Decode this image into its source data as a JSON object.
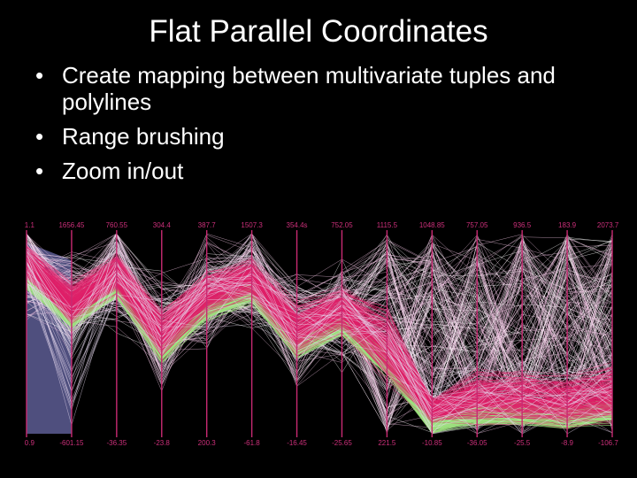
{
  "slide": {
    "title": "Flat Parallel Coordinates",
    "bullets": [
      "Create mapping between multivariate tuples and  polylines",
      "Range brushing",
      "Zoom in/out"
    ]
  },
  "chart_data": {
    "type": "parallel-coordinates",
    "axes_count": 14,
    "top_labels": [
      "1.1",
      "1656.45",
      "760.55",
      "304.4",
      "387.7",
      "1507.3",
      "354.4s",
      "752.05",
      "1115.5",
      "1048.85",
      "757.05",
      "936.5",
      "183.9",
      "2073.7"
    ],
    "bottom_labels": [
      "0.9",
      "-601.15",
      "-36.35",
      "-23.8",
      "200.3",
      "-61.8",
      "-16.45",
      "-25.65",
      "221.5",
      "-10.85",
      "-36.05",
      "-25.5",
      "-8.9",
      "-106.7"
    ],
    "colors": {
      "background": "#000000",
      "axis": "#c82a72",
      "brushed": "#e0206a",
      "band": "#9ee07f",
      "context": "#f2c4e4",
      "shadow": "#6a6aa8"
    }
  }
}
